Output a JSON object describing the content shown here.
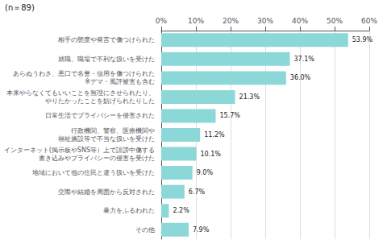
{
  "chart_data": {
    "type": "bar",
    "orientation": "horizontal",
    "annotations": [
      "(n＝89)"
    ],
    "categories": [
      "相手の態度や発言で傷つけられた",
      "就職、職場で不利な扱いを受けた",
      "あらぬうわさ、悪口で名誉・信用を傷つけられた\n※デマ・風評被害も含む",
      "本来やらなくてもいいことを無理にさせられたり、\nやりたかったことを妨げられたりした",
      "日常生活でプライバシーを侵害された",
      "行政機関、警察、医療機関や\n福祉施設等で不当な扱いを受けた",
      "インターネット(掲示板やSNS等）上で誹謗中傷する\n書き込みやプライバシーの侵害を受けた",
      "地域において他の住民と違う扱いを受けた",
      "交際や結婚を周囲から反対された",
      "暴力をふるわれた",
      "その他"
    ],
    "values": [
      53.9,
      37.1,
      36.0,
      21.3,
      15.7,
      11.2,
      10.1,
      9.0,
      6.7,
      2.2,
      7.9
    ],
    "value_labels": [
      "53.9%",
      "37.1%",
      "36.0%",
      "21.3%",
      "15.7%",
      "11.2%",
      "10.1%",
      "9.0%",
      "6.7%",
      "2.2%",
      "7.9%"
    ],
    "data_labels": true,
    "color": "#8cd8d8",
    "xlim": [
      0,
      60
    ],
    "xticks": [
      {
        "value": 0,
        "label": "0%"
      },
      {
        "value": 10,
        "label": "10%"
      },
      {
        "value": 20,
        "label": "20%"
      },
      {
        "value": 30,
        "label": "30%"
      },
      {
        "value": 40,
        "label": "40%"
      },
      {
        "value": 50,
        "label": "50%"
      },
      {
        "value": 60,
        "label": "60%"
      }
    ],
    "grid": true
  }
}
